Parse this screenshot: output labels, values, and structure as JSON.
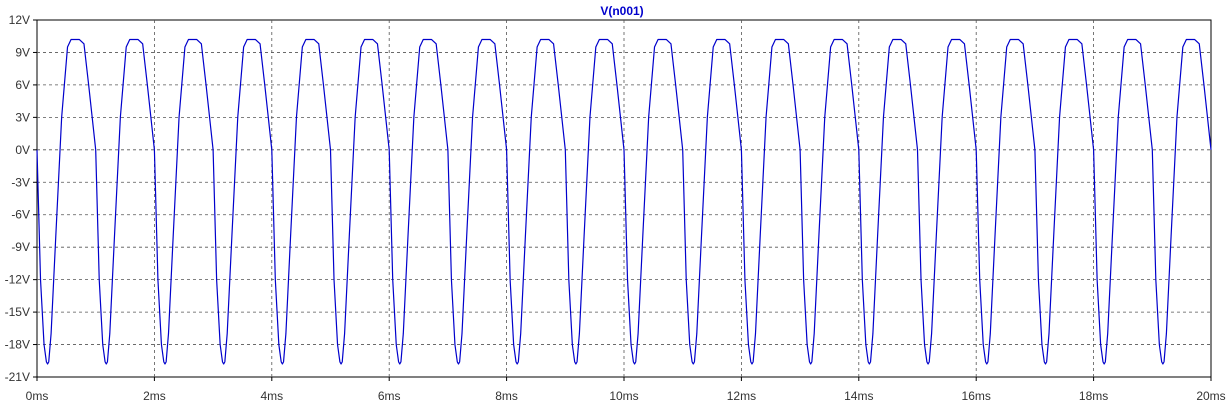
{
  "chart_data": {
    "type": "line",
    "title": "V(n001)",
    "xlabel": "",
    "ylabel": "",
    "xlim": [
      0,
      20
    ],
    "ylim": [
      -21,
      12
    ],
    "x_unit": "ms",
    "y_unit": "V",
    "x_ticks": [
      "0ms",
      "2ms",
      "4ms",
      "6ms",
      "8ms",
      "10ms",
      "12ms",
      "14ms",
      "16ms",
      "18ms",
      "20ms"
    ],
    "y_ticks": [
      "12V",
      "9V",
      "6V",
      "3V",
      "0V",
      "-3V",
      "-6V",
      "-9V",
      "-12V",
      "-15V",
      "-18V",
      "-21V"
    ],
    "grid": true,
    "grid_style": "dashed",
    "series": [
      {
        "name": "V(n001)",
        "color": "#0000cc",
        "period_ms": 1.0,
        "x": [
          0,
          0.06,
          0.12,
          0.16,
          0.18,
          0.2,
          0.24,
          0.32,
          0.42,
          0.52,
          0.58,
          0.6,
          0.66,
          0.72,
          0.8,
          0.88,
          0.94,
          1.0
        ],
        "y": [
          0,
          -12,
          -18,
          -19.6,
          -19.8,
          -19.6,
          -17,
          -8,
          3,
          9.5,
          10.2,
          10.2,
          10.2,
          10.2,
          9.8,
          6,
          3,
          0
        ]
      }
    ]
  }
}
